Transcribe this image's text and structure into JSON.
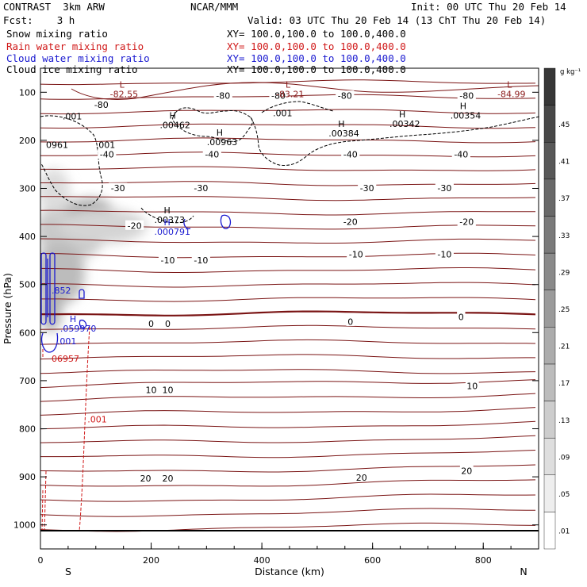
{
  "header": {
    "model": "CONTRAST  3km ARW",
    "org": "NCAR/MMM",
    "init": "Init: 00 UTC Thu 20 Feb 14",
    "fcst": "Fcst:    3 h",
    "valid": "Valid: 03 UTC Thu 20 Feb 14 (13 ChT Thu 20 Feb 14)"
  },
  "fields": [
    {
      "name": "Snow mixing ratio",
      "xy": "XY= 100.0,100.0 to 100.0,400.0",
      "color": "#000000"
    },
    {
      "name": "Rain water mixing ratio",
      "xy": "XY= 100.0,100.0 to 100.0,400.0",
      "color": "#d01818"
    },
    {
      "name": "Cloud water mixing ratio",
      "xy": "XY= 100.0,100.0 to 100.0,400.0",
      "color": "#1a1ad0"
    },
    {
      "name": "Cloud ice mixing ratio",
      "xy": "XY= 100.0,100.0 to 100.0,400.0",
      "color": "#000000"
    }
  ],
  "chart_data": {
    "type": "contour",
    "xlabel": "Distance (km)",
    "ylabel": "Pressure (hPa)",
    "xlim": [
      0,
      900
    ],
    "ylim": [
      1050,
      50
    ],
    "x_ticks": [
      0,
      200,
      400,
      600,
      800
    ],
    "y_ticks": [
      100,
      200,
      300,
      400,
      500,
      600,
      700,
      800,
      900,
      1000
    ],
    "orientation": {
      "left": "S",
      "right": "N"
    },
    "colorbar": {
      "unit": "g kg⁻¹",
      "levels": [
        ".01",
        ".05",
        ".09",
        ".13",
        ".17",
        ".21",
        ".25",
        ".29",
        ".33",
        ".37",
        ".41",
        ".45"
      ]
    },
    "temperature_labels": [
      {
        "x": 110,
        "p": 127,
        "text": "-80"
      },
      {
        "x": 330,
        "p": 108,
        "text": "-80"
      },
      {
        "x": 430,
        "p": 108,
        "text": "-80"
      },
      {
        "x": 550,
        "p": 108,
        "text": "-80"
      },
      {
        "x": 770,
        "p": 108,
        "text": "-80"
      },
      {
        "x": 120,
        "p": 230,
        "text": "-40"
      },
      {
        "x": 310,
        "p": 230,
        "text": "-40"
      },
      {
        "x": 560,
        "p": 230,
        "text": "-40"
      },
      {
        "x": 760,
        "p": 230,
        "text": "-40"
      },
      {
        "x": 140,
        "p": 300,
        "text": "-30"
      },
      {
        "x": 290,
        "p": 300,
        "text": "-30"
      },
      {
        "x": 590,
        "p": 300,
        "text": "-30"
      },
      {
        "x": 730,
        "p": 300,
        "text": "-30"
      },
      {
        "x": 170,
        "p": 378,
        "text": "-20"
      },
      {
        "x": 560,
        "p": 370,
        "text": "-20"
      },
      {
        "x": 770,
        "p": 370,
        "text": "-20"
      },
      {
        "x": 230,
        "p": 450,
        "text": "-10"
      },
      {
        "x": 290,
        "p": 450,
        "text": "-10"
      },
      {
        "x": 570,
        "p": 438,
        "text": "-10"
      },
      {
        "x": 730,
        "p": 438,
        "text": "-10"
      },
      {
        "x": 200,
        "p": 582,
        "text": "0"
      },
      {
        "x": 230,
        "p": 582,
        "text": "0"
      },
      {
        "x": 560,
        "p": 578,
        "text": "0"
      },
      {
        "x": 760,
        "p": 568,
        "text": "0"
      },
      {
        "x": 200,
        "p": 720,
        "text": "10"
      },
      {
        "x": 230,
        "p": 720,
        "text": "10"
      },
      {
        "x": 780,
        "p": 712,
        "text": "10"
      },
      {
        "x": 190,
        "p": 904,
        "text": "20"
      },
      {
        "x": 230,
        "p": 904,
        "text": "20"
      },
      {
        "x": 580,
        "p": 902,
        "text": "20"
      },
      {
        "x": 770,
        "p": 888,
        "text": "20"
      }
    ],
    "extrema": [
      {
        "type": "L",
        "x": 160,
        "p": 100,
        "text": "-82.55",
        "color": "#8b1a1a"
      },
      {
        "type": "L",
        "x": 460,
        "p": 100,
        "text": "-83.21",
        "color": "#8b1a1a"
      },
      {
        "type": "L",
        "x": 860,
        "p": 100,
        "text": "-84.99",
        "color": "#8b1a1a"
      },
      {
        "type": "H",
        "x": 250,
        "p": 165,
        "text": ".00462",
        "color": "#000000"
      },
      {
        "type": "H",
        "x": 335,
        "p": 200,
        "text": ".00963",
        "color": "#000000"
      },
      {
        "type": "H",
        "x": 555,
        "p": 182,
        "text": ".00384",
        "color": "#000000"
      },
      {
        "type": "H",
        "x": 665,
        "p": 162,
        "text": ".00342",
        "color": "#000000"
      },
      {
        "type": "H",
        "x": 775,
        "p": 145,
        "text": ".00354",
        "color": "#000000"
      },
      {
        "type": "H",
        "x": 240,
        "p": 362,
        "text": ".00373",
        "color": "#000000"
      },
      {
        "type": "H",
        "x": 240,
        "p": 387,
        "text": ".000791",
        "color": "#1a1ad0"
      },
      {
        "type": "H",
        "x": 70,
        "p": 588,
        "text": ".059970",
        "color": "#1a1ad0"
      }
    ],
    "contour_labels": [
      {
        "x": 40,
        "p": 150,
        "text": ".001",
        "color": "#000000"
      },
      {
        "x": 10,
        "p": 209,
        "text": "0961",
        "color": "#000000"
      },
      {
        "x": 100,
        "p": 209,
        "text": ".001",
        "color": "#000000"
      },
      {
        "x": 420,
        "p": 143,
        "text": ".001",
        "color": "#000000"
      },
      {
        "x": 20,
        "p": 512,
        "text": ".852",
        "color": "#1a1ad0"
      },
      {
        "x": 30,
        "p": 618,
        "text": ".001",
        "color": "#1a1ad0"
      },
      {
        "x": 20,
        "p": 654,
        "text": "06957",
        "color": "#d01818"
      },
      {
        "x": 85,
        "p": 780,
        "text": ".001",
        "color": "#d01818"
      }
    ]
  }
}
